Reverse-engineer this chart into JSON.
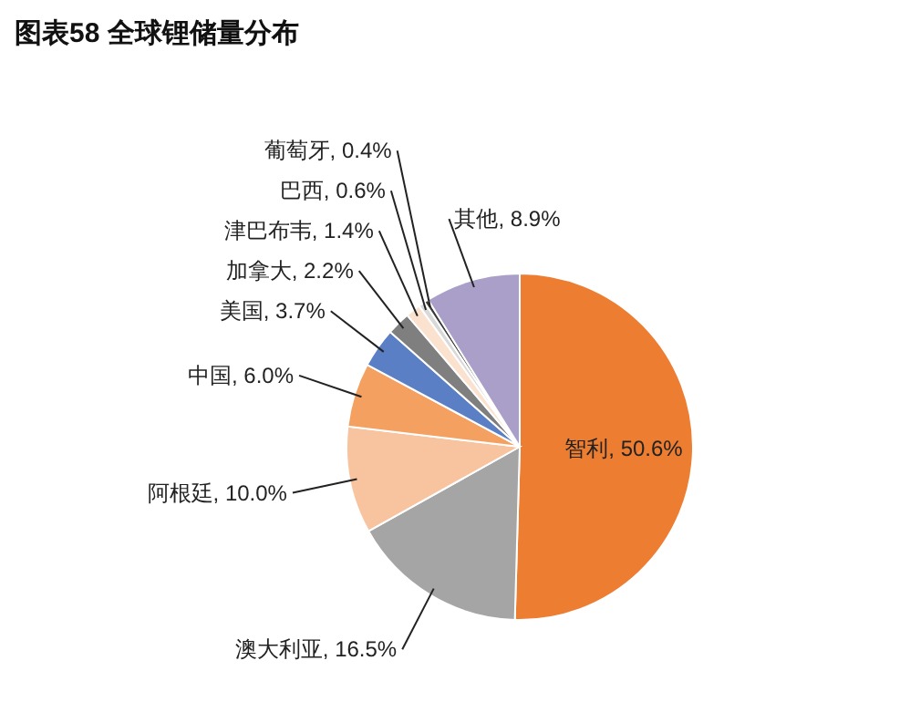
{
  "chart_data": {
    "type": "pie",
    "title": "图表58    全球锂储量分布",
    "categories": [
      "智利",
      "澳大利亚",
      "阿根廷",
      "中国",
      "美国",
      "加拿大",
      "津巴布韦",
      "巴西",
      "葡萄牙",
      "其他"
    ],
    "values": [
      50.6,
      16.5,
      10.0,
      6.0,
      3.7,
      2.2,
      1.4,
      0.6,
      0.4,
      8.9
    ],
    "value_labels": [
      "50.6%",
      "16.5%",
      "10.0%",
      "6.0%",
      "3.7%",
      "2.2%",
      "1.4%",
      "0.6%",
      "0.4%",
      "8.9%"
    ],
    "colors": [
      "#ed7d31",
      "#a5a5a5",
      "#f8c4a0",
      "#f4a060",
      "#5b7fc4",
      "#7f7f7f",
      "#fbe2cf",
      "#d9d9d9",
      "#3a3a3a",
      "#a99fc9"
    ]
  }
}
